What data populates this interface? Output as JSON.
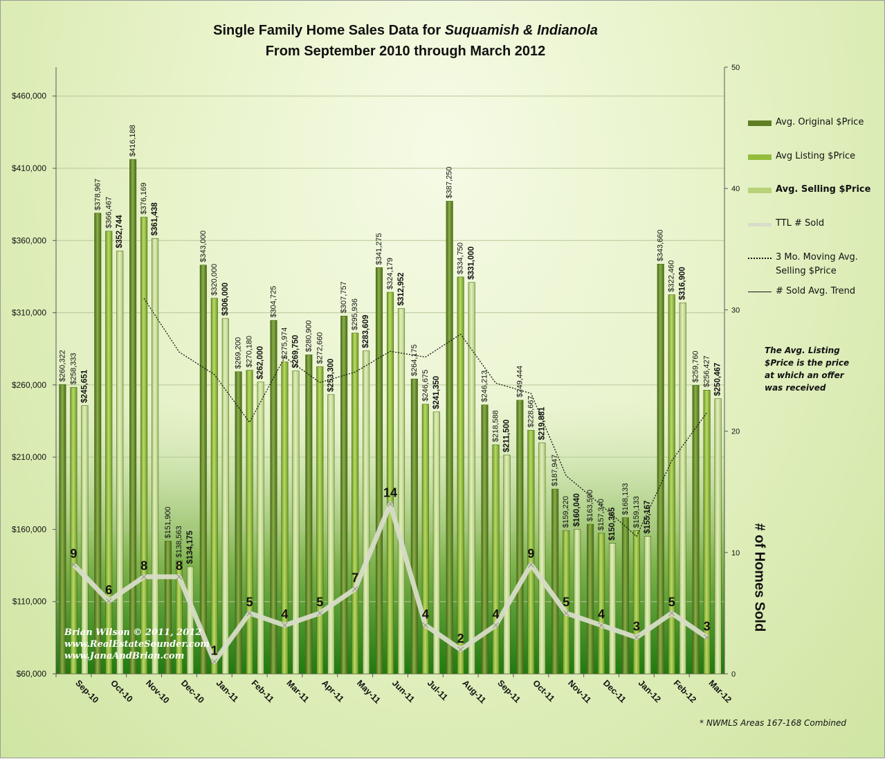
{
  "chart_data": {
    "type": "bar",
    "title_line1_prefix": "Single Family Home Sales Data for ",
    "title_place1": "Suquamish",
    "title_amp": " & ",
    "title_place2": "Indianola",
    "title_line2": "From September 2010 through March 2012",
    "categories": [
      "Sep-10",
      "Oct-10",
      "Nov-10",
      "Dec-10",
      "Jan-11",
      "Feb-11",
      "Mar-11",
      "Apr-11",
      "May-11",
      "Jun-11",
      "Jul-11",
      "Aug-11",
      "Sep-11",
      "Oct-11",
      "Nov-11",
      "Dec-11",
      "Jan-12",
      "Feb-12",
      "Mar-12"
    ],
    "y_left": {
      "min": 60000,
      "max": 480000,
      "ticks": [
        60000,
        110000,
        160000,
        210000,
        260000,
        310000,
        360000,
        410000,
        460000
      ],
      "tick_labels": [
        "$60,000",
        "$110,000",
        "$160,000",
        "$210,000",
        "$260,000",
        "$310,000",
        "$360,000",
        "$410,000",
        "$460,000"
      ]
    },
    "y_right": {
      "min": 0,
      "max": 50,
      "ticks": [
        0,
        10,
        20,
        30,
        40,
        50
      ],
      "tick_labels": [
        "0",
        "10",
        "20",
        "30",
        "40",
        "50"
      ],
      "label": "# of Homes Sold"
    },
    "series": [
      {
        "name": "Avg. Original $Price",
        "color": "#6a8a2a",
        "values": [
          260322,
          378967,
          416188,
          151900,
          343000,
          269200,
          304725,
          280900,
          307757,
          341275,
          264175,
          387250,
          246213,
          249444,
          187947,
          163590,
          168133,
          343660,
          259760
        ],
        "labels": [
          "$260,322",
          "$378,967",
          "$416,188",
          "$151,900",
          "$343,000",
          "$269,200",
          "$304,725",
          "$280,900",
          "$307,757",
          "$341,275",
          "$264,175",
          "$387,250",
          "$246,213",
          "$249,444",
          "$187,947",
          "$163,590",
          "$168,133",
          "$343,660",
          "$259,760"
        ]
      },
      {
        "name": "Avg Listing $Price",
        "color": "#9cc03e",
        "values": [
          258333,
          366467,
          376169,
          138563,
          320000,
          270180,
          275974,
          272660,
          295936,
          324179,
          246675,
          334750,
          218588,
          228667,
          159220,
          157340,
          159133,
          322460,
          256427
        ],
        "labels": [
          "$258,333",
          "$366,467",
          "$376,169",
          "$138,563",
          "$320,000",
          "$270,180",
          "$275,974",
          "$272,660",
          "$295,936",
          "$324,179",
          "$246,675",
          "$334,750",
          "$218,588",
          "$228,667",
          "$159,220",
          "$157,340",
          "$159,133",
          "$322,460",
          "$256,427"
        ]
      },
      {
        "name": "Avg. Selling $Price",
        "color": "#c8de8a",
        "values": [
          245651,
          352744,
          361438,
          134175,
          306000,
          262000,
          269750,
          253300,
          283609,
          312952,
          241350,
          331000,
          211500,
          219881,
          160040,
          150365,
          155167,
          316900,
          250467
        ],
        "labels": [
          "$245,651",
          "$352,744",
          "$361,438",
          "$134,175",
          "$306,000",
          "$262,000",
          "$269,750",
          "$253,300",
          "$283,609",
          "$312,952",
          "$241,350",
          "$331,000",
          "$211,500",
          "$219,881",
          "$160,040",
          "$150,365",
          "$155,167",
          "$316,900",
          "$250,467"
        ]
      },
      {
        "name": "TTL # Sold",
        "axis": "right",
        "color": "#d8dcc8",
        "values": [
          9,
          6,
          8,
          8,
          1,
          5,
          4,
          5,
          7,
          14,
          4,
          2,
          4,
          9,
          5,
          4,
          3,
          5,
          3
        ],
        "labels": [
          "9",
          "6",
          "8",
          "8",
          "1",
          "5",
          "4",
          "5",
          "7",
          "14",
          "4",
          "2",
          "4",
          "9",
          "5",
          "4",
          "3",
          "5",
          "3"
        ]
      }
    ],
    "legend": {
      "placement": "right",
      "entries": [
        "Avg. Original $Price",
        "Avg Listing $Price",
        "Avg. Selling $Price",
        "TTL # Sold",
        "3 Mo. Moving Avg. Selling $Price",
        "# Sold Avg. Trend"
      ],
      "moving_avg_line1": "3 Mo. Moving Avg.",
      "moving_avg_line2": "Selling $Price"
    },
    "grid": true
  },
  "note": {
    "line1": "The Avg. Listing",
    "line2": "$Price is the price",
    "line3": "at which an offer",
    "line4": "was received"
  },
  "credits": {
    "line1": "Brian Wilson  © 2011, 2012",
    "line2": "www.RealEstateSounder.com",
    "line3": "www.JanaAndBrian.com"
  },
  "footnote": "* NWMLS Areas 167-168 Combined",
  "colors": {
    "plot_bottom": "#1f7a10",
    "plot_top": "#f2f8e6"
  }
}
